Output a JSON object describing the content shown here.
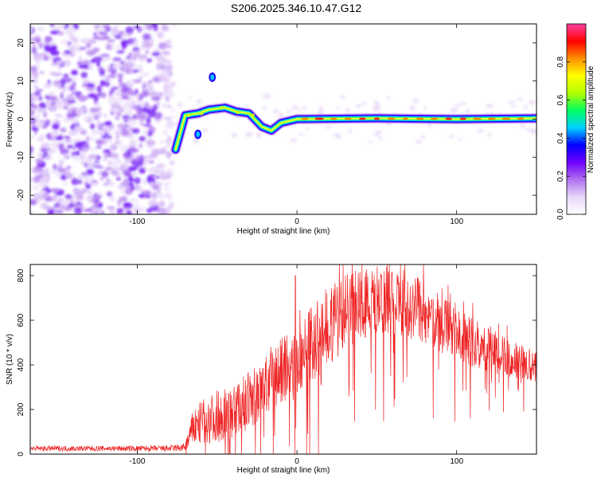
{
  "title": "S206.2025.346.10.47.G12",
  "chart_data": [
    {
      "type": "heatmap",
      "name": "spectrogram",
      "xlabel": "Height of straight line (km)",
      "ylabel": "Frequency (Hz)",
      "xlim": [
        -167,
        150
      ],
      "ylim": [
        -25,
        25
      ],
      "xticks": [
        -100,
        0,
        100
      ],
      "yticks": [
        -20,
        -10,
        0,
        10,
        20
      ],
      "colorbar": {
        "label": "Normalized spectral amplitude",
        "range": [
          0,
          1
        ],
        "ticks": [
          0.0,
          0.2,
          0.4,
          0.6,
          0.8
        ],
        "colors": [
          "#ffffff",
          "#e8d8f8",
          "#b070f0",
          "#7000ff",
          "#0000ff",
          "#00d0ff",
          "#00ff60",
          "#b0ff00",
          "#ffff00",
          "#ff9000",
          "#ff0000",
          "#ff40a0"
        ]
      },
      "ridge": [
        [
          -76,
          -8
        ],
        [
          -70,
          1
        ],
        [
          -62,
          1.5
        ],
        [
          -55,
          2.5
        ],
        [
          -45,
          3
        ],
        [
          -38,
          2
        ],
        [
          -30,
          1.5
        ],
        [
          -22,
          -2
        ],
        [
          -16,
          -3
        ],
        [
          -10,
          -1
        ],
        [
          0,
          0
        ],
        [
          50,
          0.2
        ],
        [
          100,
          0
        ],
        [
          150,
          0.2
        ]
      ],
      "features": [
        {
          "x": -53,
          "y": 11
        },
        {
          "x": -62,
          "y": -4
        }
      ]
    },
    {
      "type": "line",
      "name": "snr",
      "xlabel": "Height of straight line (km)",
      "ylabel": "SNR (10 * v/v)",
      "xlim": [
        -167,
        150
      ],
      "ylim": [
        0,
        850
      ],
      "xticks": [
        -100,
        0,
        100
      ],
      "yticks": [
        0,
        200,
        400,
        600,
        800
      ],
      "color": "#ee2222",
      "envelope": {
        "x": [
          -167,
          -120,
          -80,
          -70,
          -65,
          -60,
          -50,
          -40,
          -30,
          -20,
          -10,
          0,
          10,
          20,
          30,
          40,
          50,
          60,
          70,
          80,
          90,
          100,
          110,
          120,
          130,
          140,
          150
        ],
        "mean": [
          25,
          25,
          25,
          30,
          120,
          140,
          170,
          190,
          240,
          300,
          370,
          420,
          500,
          580,
          640,
          680,
          690,
          690,
          670,
          630,
          580,
          540,
          500,
          470,
          440,
          420,
          390
        ],
        "spread": [
          12,
          12,
          14,
          20,
          80,
          100,
          120,
          120,
          130,
          150,
          160,
          170,
          180,
          180,
          180,
          170,
          160,
          160,
          150,
          140,
          130,
          120,
          110,
          100,
          90,
          80,
          70
        ]
      }
    }
  ]
}
